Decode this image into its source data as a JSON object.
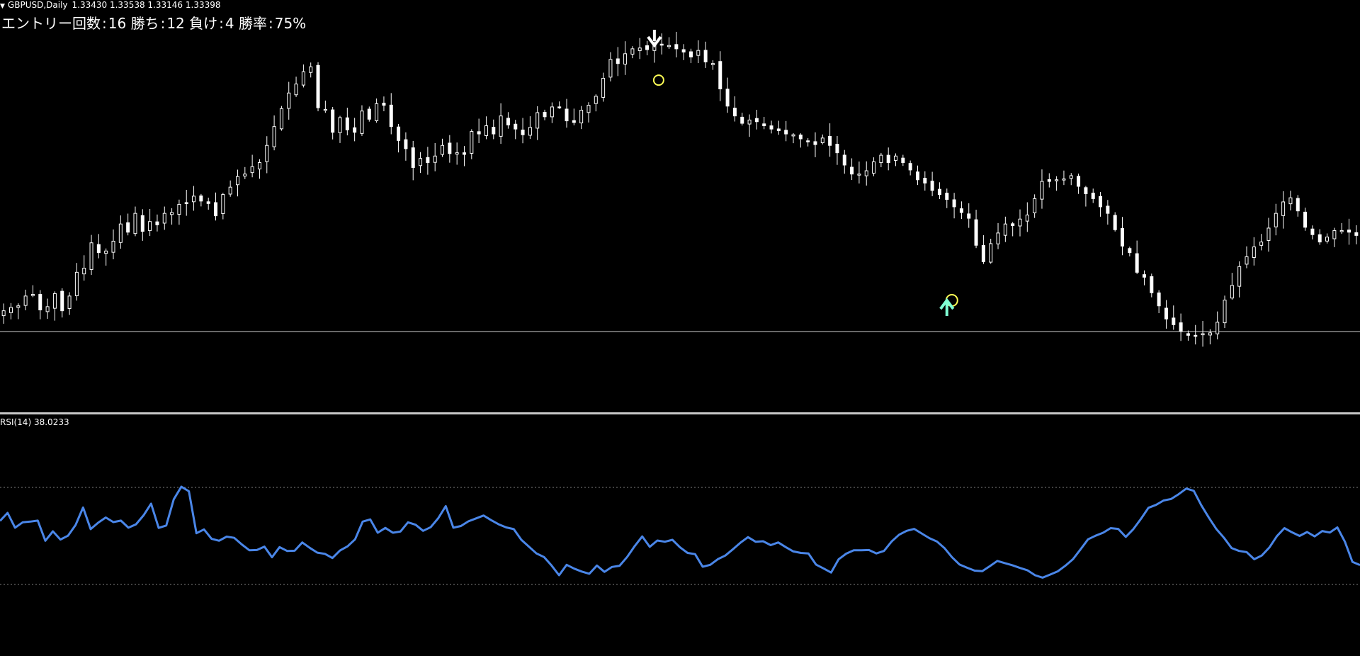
{
  "header": {
    "symbol": "GBPUSD,Daily",
    "open": "1.33430",
    "high": "1.33538",
    "low": "1.33146",
    "close": "1.33398"
  },
  "stats": {
    "entries_label": "エントリー回数",
    "entries": "16",
    "wins_label": "勝ち",
    "wins": "12",
    "losses_label": "負け",
    "losses": "4",
    "winrate_label": "勝率",
    "winrate": "75%"
  },
  "rsi": {
    "label": "RSI(14)",
    "value": "38.0233"
  },
  "colors": {
    "background": "#000000",
    "candle": "#ffffff",
    "rsi_line": "#4a86e8",
    "signal_circle": "#ffff55",
    "sell_arrow": "#ffffff",
    "buy_arrow": "#7fffd4",
    "divider": "#c8c8c8"
  },
  "chart_data": [
    {
      "type": "candlestick",
      "title": "GBPUSD,Daily",
      "series": [
        {
          "name": "GBPUSD",
          "close": [
            30.5,
            30.9,
            31.1,
            32.3,
            32.5,
            30.6,
            31.0,
            32.6,
            30.5,
            32.3,
            35.2,
            35.7,
            38.8,
            37.6,
            37.8,
            39.0,
            41.1,
            40.1,
            42.4,
            40.2,
            41.4,
            41.0,
            42.4,
            42.5,
            43.5,
            43.6,
            44.5,
            43.9,
            43.6,
            42.1,
            44.7,
            45.6,
            46.9,
            47.2,
            48.1,
            48.6,
            50.7,
            53.0,
            55.2,
            57.1,
            58.2,
            59.7,
            60.3,
            55.3,
            55.1,
            52.3,
            54.1,
            52.6,
            52.3,
            54.9,
            53.9,
            55.8,
            55.6,
            53.0,
            51.3,
            50.3,
            48.0,
            49.1,
            48.6,
            49.4,
            50.7,
            49.7,
            49.8,
            49.6,
            52.4,
            52.1,
            53.1,
            52.1,
            54.3,
            53.2,
            52.7,
            52.0,
            52.9,
            54.7,
            54.2,
            55.4,
            55.4,
            53.7,
            53.5,
            55.0,
            55.6,
            56.7,
            58.9,
            61.2,
            60.7,
            61.9,
            62.5,
            62.6,
            62.4,
            63.0,
            63.0,
            62.9,
            62.5,
            62.1,
            61.5,
            62.3,
            60.9,
            60.7,
            57.6,
            55.5,
            54.3,
            53.4,
            53.8,
            53.6,
            53.1,
            52.7,
            52.5,
            52.1,
            52.0,
            51.5,
            51.2,
            50.8,
            51.6,
            50.7,
            49.8,
            48.3,
            47.2,
            47.2,
            47.6,
            48.7,
            49.5,
            48.6,
            49.4,
            48.6,
            47.7,
            46.5,
            46.1,
            45.2,
            44.7,
            44.1,
            43.2,
            42.5,
            41.8,
            38.5,
            36.5,
            38.7,
            40.0,
            41.1,
            40.9,
            41.7,
            42.2,
            44.2,
            46.3,
            46.3,
            46.5,
            46.6,
            47.0,
            45.7,
            44.8,
            44.2,
            43.2,
            42.4,
            40.4,
            38.4,
            37.6,
            35.2,
            34.6,
            32.7,
            31.1,
            29.5,
            28.8,
            28.0,
            27.5,
            27.4,
            27.7,
            27.8,
            29.1,
            31.8,
            33.6,
            35.9,
            37.1,
            38.3,
            38.9,
            40.6,
            42.4,
            43.8,
            44.3,
            42.7,
            40.7,
            39.8,
            38.9,
            39.5,
            40.3,
            40.3,
            40.1,
            39.7
          ]
        }
      ]
    },
    {
      "type": "line",
      "title": "RSI(14) 38.0233",
      "ylim": [
        30,
        70
      ],
      "levels": [
        70,
        30
      ],
      "series": [
        {
          "name": "RSI(14)",
          "values": [
            56.2,
            59.5,
            53.4,
            55.6,
            55.9,
            56.3,
            48.0,
            51.9,
            48.5,
            50.1,
            54.5,
            61.7,
            52.8,
            55.5,
            57.6,
            55.7,
            56.3,
            53.4,
            54.8,
            58.5,
            63.3,
            53.3,
            54.3,
            65.1,
            70.3,
            68.4,
            51.1,
            52.7,
            48.8,
            48.0,
            49.7,
            49.2,
            46.5,
            44.1,
            44.2,
            45.6,
            41.2,
            45.4,
            43.8,
            43.9,
            47.3,
            45.1,
            43.1,
            42.6,
            40.9,
            44.0,
            45.7,
            48.6,
            55.9,
            56.8,
            51.3,
            53.3,
            51.3,
            51.8,
            55.6,
            54.6,
            52.1,
            53.6,
            57.3,
            62.3,
            53.4,
            54.1,
            56.0,
            57.2,
            58.4,
            56.5,
            54.8,
            53.5,
            52.8,
            48.4,
            45.6,
            42.8,
            41.3,
            37.8,
            33.8,
            38.1,
            36.5,
            35.3,
            34.4,
            37.8,
            35.2,
            37.2,
            37.7,
            41.3,
            45.8,
            49.8,
            45.5,
            48.1,
            47.6,
            48.4,
            45.3,
            43.0,
            42.5,
            37.3,
            38.1,
            40.4,
            41.9,
            44.5,
            47.2,
            49.5,
            47.6,
            47.8,
            46.2,
            47.3,
            45.4,
            43.6,
            43.0,
            42.8,
            38.2,
            36.6,
            34.9,
            40.4,
            42.7,
            44.1,
            44.1,
            44.2,
            42.8,
            43.8,
            47.7,
            50.5,
            52.1,
            52.9,
            51.0,
            49.1,
            47.7,
            45.0,
            41.2,
            38.2,
            36.9,
            35.7,
            35.5,
            37.5,
            39.7,
            38.8,
            37.9,
            36.8,
            35.8,
            33.8,
            32.8,
            34.1,
            35.4,
            37.7,
            40.4,
            44.4,
            48.6,
            50.1,
            51.3,
            53.2,
            52.9,
            49.6,
            52.8,
            57.0,
            61.6,
            62.8,
            64.6,
            65.2,
            67.2,
            69.5,
            68.6,
            62.6,
            57.5,
            52.8,
            49.2,
            45.0,
            43.8,
            43.3,
            40.4,
            41.9,
            45.2,
            49.9,
            53.2,
            51.5,
            50.0,
            51.6,
            49.8,
            52.0,
            51.4,
            53.5,
            47.6,
            39.3,
            38.0
          ]
        }
      ]
    }
  ]
}
